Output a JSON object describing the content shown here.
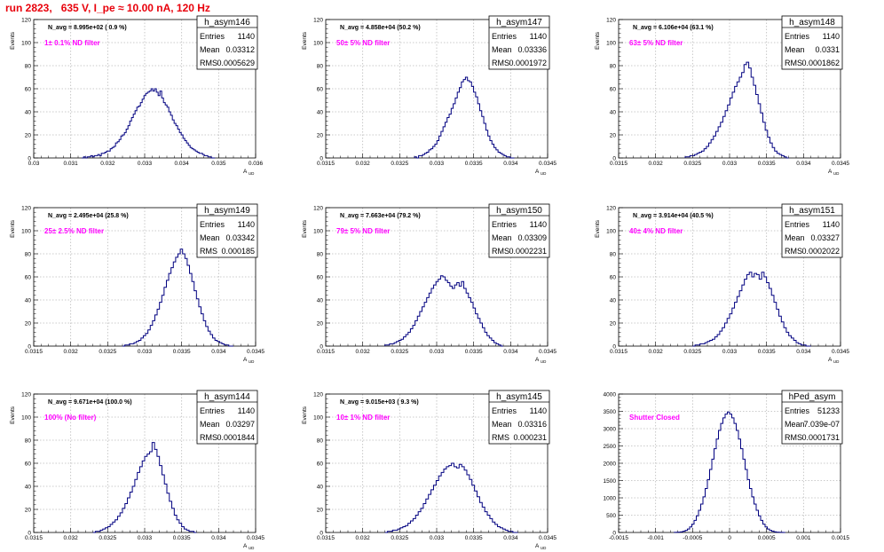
{
  "page": {
    "title": "run 2823,   635 V, I_pe ≈ 10.00 nA, 120 Hz",
    "colors": {
      "title": "#e8000b",
      "annotation": "#ff00ff",
      "histogram": "#000080",
      "grid": "#bbbbbb"
    }
  },
  "chart_data": [
    {
      "type": "histogram",
      "name": "h_asym146",
      "navg": "N_avg = 8.995e+02 ( 0.9 %)",
      "filter": "1± 0.1% ND filter",
      "stats": {
        "entries": "1140",
        "mean": "0.03312",
        "rms": "0.0005629"
      },
      "ylabel": "Events",
      "xlabel": "A_UD",
      "xlim": [
        0.03,
        0.036
      ],
      "ylim": [
        0,
        120
      ],
      "grid": true,
      "yticks": [
        "0",
        "20",
        "40",
        "60",
        "80",
        "100",
        "120"
      ],
      "xticks": [
        "0.03",
        "0.031",
        "0.032",
        "0.033",
        "0.034",
        "0.035",
        "0.036"
      ],
      "bins": {
        "lo": 0.0313,
        "hi": 0.0349,
        "values": [
          0,
          1,
          0,
          1,
          1,
          2,
          1,
          2,
          2,
          3,
          2,
          4,
          4,
          5,
          6,
          6,
          8,
          9,
          10,
          13,
          14,
          16,
          19,
          20,
          22,
          25,
          28,
          32,
          35,
          38,
          41,
          44,
          45,
          48,
          51,
          54,
          56,
          57,
          58,
          60,
          58,
          60,
          57,
          54,
          58,
          52,
          48,
          46,
          44,
          40,
          37,
          33,
          30,
          28,
          25,
          22,
          20,
          17,
          15,
          13,
          11,
          9,
          8,
          7,
          6,
          5,
          4,
          4,
          3,
          2,
          2,
          1,
          1,
          0,
          0
        ]
      }
    },
    {
      "type": "histogram",
      "name": "h_asym147",
      "navg": "N_avg = 4.858e+04 (50.2 %)",
      "filter": "50± 5% ND filter",
      "stats": {
        "entries": "1140",
        "mean": "0.03336",
        "rms": "0.0001972"
      },
      "ylabel": "Events",
      "xlabel": "A_UD",
      "xlim": [
        0.0315,
        0.0345
      ],
      "ylim": [
        0,
        120
      ],
      "grid": true,
      "yticks": [
        "0",
        "20",
        "40",
        "60",
        "80",
        "100",
        "120"
      ],
      "xticks": [
        "0.0315",
        "0.032",
        "0.0325",
        "0.033",
        "0.0335",
        "0.034",
        "0.0345"
      ],
      "bins": {
        "lo": 0.0327,
        "hi": 0.03405,
        "values": [
          1,
          0,
          2,
          2,
          3,
          4,
          5,
          7,
          8,
          10,
          12,
          15,
          19,
          23,
          27,
          31,
          35,
          38,
          43,
          47,
          52,
          57,
          61,
          66,
          68,
          70,
          67,
          66,
          62,
          57,
          53,
          47,
          41,
          36,
          30,
          24,
          19,
          15,
          12,
          9,
          7,
          5,
          4,
          3,
          2,
          1,
          1,
          0,
          0
        ]
      }
    },
    {
      "type": "histogram",
      "name": "h_asym148",
      "navg": "N_avg = 6.106e+04 (63.1 %)",
      "filter": "63± 5% ND filter",
      "stats": {
        "entries": "1140",
        "mean": "0.0331",
        "rms": "0.0001862"
      },
      "ylabel": "Events",
      "xlabel": "A_UD",
      "xlim": [
        0.0315,
        0.0345
      ],
      "ylim": [
        0,
        120
      ],
      "grid": true,
      "yticks": [
        "0",
        "20",
        "40",
        "60",
        "80",
        "100",
        "120"
      ],
      "xticks": [
        "0.0315",
        "0.032",
        "0.0325",
        "0.033",
        "0.0335",
        "0.034",
        "0.0345"
      ],
      "bins": {
        "lo": 0.0324,
        "hi": 0.0338,
        "values": [
          1,
          1,
          2,
          2,
          3,
          4,
          5,
          6,
          8,
          10,
          13,
          16,
          19,
          23,
          27,
          31,
          36,
          41,
          46,
          52,
          57,
          62,
          66,
          70,
          74,
          81,
          83,
          78,
          70,
          63,
          55,
          47,
          39,
          31,
          24,
          18,
          13,
          9,
          6,
          4,
          3,
          2,
          1,
          0
        ]
      }
    },
    {
      "type": "histogram",
      "name": "h_asym149",
      "navg": "N_avg = 2.495e+04 (25.8 %)",
      "filter": "25± 2.5% ND filter",
      "stats": {
        "entries": "1140",
        "mean": "0.03342",
        "rms": "0.000185"
      },
      "ylabel": "Events",
      "xlabel": "A_UD",
      "xlim": [
        0.0315,
        0.0345
      ],
      "ylim": [
        0,
        120
      ],
      "grid": true,
      "yticks": [
        "0",
        "20",
        "40",
        "60",
        "80",
        "100",
        "120"
      ],
      "xticks": [
        "0.0315",
        "0.032",
        "0.0325",
        "0.033",
        "0.0335",
        "0.034",
        "0.0345"
      ],
      "bins": {
        "lo": 0.0327,
        "hi": 0.0342,
        "values": [
          0,
          1,
          1,
          2,
          2,
          3,
          4,
          5,
          7,
          9,
          11,
          14,
          18,
          22,
          27,
          32,
          38,
          44,
          51,
          57,
          63,
          68,
          73,
          77,
          80,
          84,
          80,
          76,
          70,
          63,
          56,
          48,
          41,
          34,
          28,
          22,
          17,
          13,
          10,
          7,
          5,
          4,
          3,
          2,
          1,
          1,
          0,
          0
        ]
      }
    },
    {
      "type": "histogram",
      "name": "h_asym150",
      "navg": "N_avg = 7.663e+04 (79.2 %)",
      "filter": "79± 5% ND filter",
      "stats": {
        "entries": "1140",
        "mean": "0.03309",
        "rms": "0.0002231"
      },
      "ylabel": "Events",
      "xlabel": "A_UD",
      "xlim": [
        0.0315,
        0.0345
      ],
      "ylim": [
        0,
        120
      ],
      "grid": true,
      "yticks": [
        "0",
        "20",
        "40",
        "60",
        "80",
        "100",
        "120"
      ],
      "xticks": [
        "0.0315",
        "0.032",
        "0.0325",
        "0.033",
        "0.0335",
        "0.034",
        "0.0345"
      ],
      "bins": {
        "lo": 0.0323,
        "hi": 0.0339,
        "values": [
          1,
          1,
          2,
          2,
          3,
          4,
          5,
          6,
          8,
          10,
          12,
          15,
          18,
          22,
          26,
          30,
          34,
          38,
          42,
          46,
          50,
          53,
          56,
          58,
          61,
          60,
          57,
          55,
          52,
          50,
          53,
          55,
          52,
          56,
          50,
          46,
          42,
          38,
          33,
          28,
          24,
          20,
          16,
          12,
          9,
          7,
          5,
          3,
          2,
          1,
          0
        ]
      }
    },
    {
      "type": "histogram",
      "name": "h_asym151",
      "navg": "N_avg = 3.914e+04 (40.5 %)",
      "filter": "40± 4% ND filter",
      "stats": {
        "entries": "1140",
        "mean": "0.03327",
        "rms": "0.0002022"
      },
      "ylabel": "Events",
      "xlabel": "A_UD",
      "xlim": [
        0.0315,
        0.0345
      ],
      "ylim": [
        0,
        120
      ],
      "grid": true,
      "yticks": [
        "0",
        "20",
        "40",
        "60",
        "80",
        "100",
        "120"
      ],
      "xticks": [
        "0.0315",
        "0.032",
        "0.0325",
        "0.033",
        "0.0335",
        "0.034",
        "0.0345"
      ],
      "bins": {
        "lo": 0.0325,
        "hi": 0.0341,
        "values": [
          0,
          1,
          1,
          2,
          2,
          3,
          4,
          5,
          6,
          8,
          10,
          13,
          16,
          20,
          24,
          28,
          33,
          38,
          43,
          48,
          53,
          58,
          62,
          64,
          60,
          63,
          62,
          58,
          64,
          60,
          55,
          50,
          44,
          38,
          32,
          26,
          21,
          16,
          12,
          9,
          7,
          5,
          3,
          2,
          1,
          1,
          0,
          0
        ]
      }
    },
    {
      "type": "histogram",
      "name": "h_asym144",
      "navg": "N_avg = 9.671e+04 (100.0 %)",
      "filter": "100% (No filter)",
      "stats": {
        "entries": "1140",
        "mean": "0.03297",
        "rms": "0.0001844"
      },
      "ylabel": "Events",
      "xlabel": "A_UD",
      "xlim": [
        0.0315,
        0.0345
      ],
      "ylim": [
        0,
        120
      ],
      "grid": true,
      "yticks": [
        "0",
        "20",
        "40",
        "60",
        "80",
        "100",
        "120"
      ],
      "xticks": [
        "0.0315",
        "0.032",
        "0.0325",
        "0.033",
        "0.0335",
        "0.034",
        "0.0345"
      ],
      "bins": {
        "lo": 0.0323,
        "hi": 0.0337,
        "values": [
          0,
          1,
          1,
          2,
          3,
          4,
          5,
          7,
          9,
          11,
          14,
          17,
          21,
          25,
          30,
          35,
          40,
          46,
          52,
          57,
          62,
          66,
          68,
          70,
          78,
          72,
          66,
          58,
          50,
          42,
          34,
          27,
          21,
          15,
          11,
          8,
          5,
          3,
          2,
          1,
          1,
          0
        ]
      }
    },
    {
      "type": "histogram",
      "name": "h_asym145",
      "navg": "N_avg = 9.015e+03 ( 9.3 %)",
      "filter": "10± 1% ND filter",
      "stats": {
        "entries": "1140",
        "mean": "0.03316",
        "rms": "0.000231"
      },
      "ylabel": "Events",
      "xlabel": "A_UD",
      "xlim": [
        0.0315,
        0.0345
      ],
      "ylim": [
        0,
        120
      ],
      "grid": true,
      "yticks": [
        "0",
        "20",
        "40",
        "60",
        "80",
        "100",
        "120"
      ],
      "xticks": [
        "0.0315",
        "0.032",
        "0.0325",
        "0.033",
        "0.0335",
        "0.034",
        "0.0345"
      ],
      "bins": {
        "lo": 0.0323,
        "hi": 0.0341,
        "values": [
          0,
          1,
          1,
          2,
          2,
          3,
          4,
          5,
          6,
          8,
          10,
          12,
          15,
          18,
          21,
          25,
          29,
          33,
          37,
          41,
          45,
          49,
          52,
          55,
          57,
          58,
          60,
          57,
          56,
          59,
          57,
          54,
          50,
          46,
          41,
          36,
          31,
          26,
          22,
          18,
          15,
          12,
          9,
          7,
          5,
          4,
          3,
          2,
          1,
          1,
          0,
          0
        ]
      }
    },
    {
      "type": "histogram",
      "name": "hPed_asym",
      "navg": "",
      "filter": "Shutter Closed",
      "stats": {
        "entries": "51233",
        "mean": "7.039e-07",
        "rms": "0.0001731"
      },
      "ylabel": "",
      "xlabel": "",
      "xlim": [
        -0.0015,
        0.0015
      ],
      "ylim": [
        0,
        4000
      ],
      "grid": true,
      "yticks": [
        "0",
        "500",
        "1000",
        "1500",
        "2000",
        "2500",
        "3000",
        "3500",
        "4000"
      ],
      "xticks": [
        "-0.0015",
        "-0.001",
        "-0.0005",
        "0",
        "0.0005",
        "0.001",
        "0.0015"
      ],
      "bins": {
        "lo": -0.00075,
        "hi": 0.00075,
        "values": [
          2,
          5,
          10,
          20,
          35,
          60,
          100,
          160,
          240,
          350,
          480,
          640,
          820,
          1030,
          1270,
          1530,
          1820,
          2120,
          2420,
          2700,
          2950,
          3150,
          3310,
          3420,
          3480,
          3420,
          3310,
          3150,
          2950,
          2700,
          2420,
          2120,
          1820,
          1530,
          1270,
          1030,
          820,
          640,
          480,
          350,
          240,
          160,
          100,
          60,
          35,
          20,
          10,
          5,
          2,
          1
        ]
      }
    }
  ]
}
